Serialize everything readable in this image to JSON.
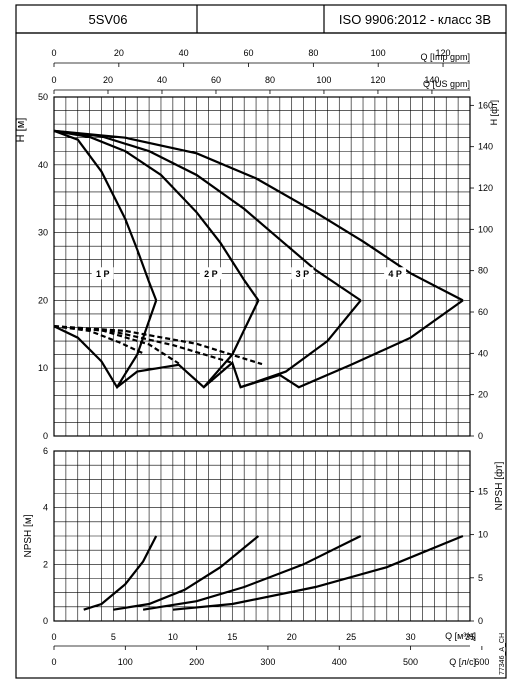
{
  "header": {
    "model": "5SV06",
    "blank": "",
    "standard": "ISO 9906:2012 - класс 3B"
  },
  "footer_code": "77346_A_CH",
  "chart_data": [
    {
      "type": "line",
      "title": "",
      "xlabel": "Q [м³/ч]",
      "ylabel": "H [м]",
      "y2label": "H [фт]",
      "xlim": [
        0,
        35
      ],
      "ylim": [
        0,
        50
      ],
      "x_ticks": [
        0,
        5,
        10,
        15,
        20,
        25,
        30
      ],
      "y_ticks": [
        0,
        10,
        20,
        30,
        40,
        50
      ],
      "y2_ticks": [
        0,
        20,
        40,
        60,
        80,
        100,
        120,
        140,
        160
      ],
      "y2_factor": 3.2808,
      "top_axes": [
        {
          "label": "Q [Imp gpm]",
          "factor": 3.6662,
          "ticks": [
            0,
            20,
            40,
            60,
            80,
            100,
            120
          ]
        },
        {
          "label": "Q [US gpm]",
          "factor": 4.4029,
          "ticks": [
            0,
            20,
            40,
            60,
            80,
            100,
            120,
            140
          ]
        }
      ],
      "grid": true,
      "series": [
        {
          "name": "1 P",
          "style": "solid",
          "label_at": [
            4.1,
            24
          ],
          "x": [
            0,
            2,
            4,
            6,
            7,
            8,
            8.6
          ],
          "y": [
            45,
            43.7,
            39,
            32,
            27.5,
            22.7,
            20
          ]
        },
        {
          "name": "2 P",
          "style": "solid",
          "label_at": [
            13.2,
            24
          ],
          "x": [
            0,
            3,
            6,
            9,
            12,
            14,
            16,
            17.2
          ],
          "y": [
            45,
            44.1,
            42,
            38.5,
            33,
            28.5,
            23,
            20
          ]
        },
        {
          "name": "3 P",
          "style": "solid",
          "label_at": [
            20.9,
            24
          ],
          "x": [
            0,
            4,
            8,
            12,
            16,
            19,
            22,
            25.8
          ],
          "y": [
            45,
            44.2,
            42,
            38.5,
            33.5,
            29,
            24.5,
            20
          ]
        },
        {
          "name": "4 P",
          "style": "solid",
          "label_at": [
            28.7,
            24
          ],
          "x": [
            0,
            6,
            12,
            17,
            22,
            26,
            30,
            34.4
          ],
          "y": [
            45,
            44,
            41.7,
            38,
            33,
            28.7,
            24,
            20
          ]
        },
        {
          "name": "",
          "style": "solid",
          "x": [
            0,
            2,
            4,
            5.3,
            7,
            8.6
          ],
          "y": [
            16.2,
            14.5,
            11,
            7.2,
            12,
            20
          ]
        },
        {
          "name": "",
          "style": "solid",
          "x": [
            5.3,
            7,
            10.5,
            12.6,
            15,
            17.2
          ],
          "y": [
            7.2,
            9.5,
            10.5,
            7.2,
            12,
            20
          ]
        },
        {
          "name": "",
          "style": "solid",
          "x": [
            12.6,
            15,
            15.7,
            19.5,
            23,
            25.8
          ],
          "y": [
            7.2,
            10.8,
            7.2,
            9.5,
            14,
            20
          ]
        },
        {
          "name": "",
          "style": "solid",
          "x": [
            15.7,
            19,
            20.6,
            25,
            30,
            34.4
          ],
          "y": [
            7.2,
            9,
            7.2,
            10.5,
            14.5,
            20
          ]
        },
        {
          "name": "",
          "style": "dashed",
          "x": [
            0,
            3,
            5.5,
            7.5
          ],
          "y": [
            16.2,
            15.5,
            13.8,
            12.2
          ]
        },
        {
          "name": "",
          "style": "dashed",
          "x": [
            0,
            4,
            8,
            10.5
          ],
          "y": [
            16.2,
            15.6,
            13.5,
            10.7
          ]
        },
        {
          "name": "",
          "style": "dashed",
          "x": [
            0,
            5,
            10,
            15
          ],
          "y": [
            16.2,
            15.4,
            13.4,
            10.8
          ]
        },
        {
          "name": "",
          "style": "dashed",
          "x": [
            0,
            6,
            12,
            17.5
          ],
          "y": [
            16.2,
            15.5,
            13.6,
            10.6
          ]
        }
      ]
    },
    {
      "type": "line",
      "title": "",
      "xlabel": "Q [м³/ч]",
      "x2label": "Q [л/с]",
      "ylabel": "NPSH [м]",
      "y2label": "NPSH [фт]",
      "xlim": [
        0,
        35
      ],
      "ylim": [
        0,
        6
      ],
      "x_ticks": [
        0,
        5,
        10,
        15,
        20,
        25,
        30,
        35
      ],
      "y_ticks": [
        0,
        2,
        4,
        6
      ],
      "y2_ticks": [
        0,
        5,
        10,
        15
      ],
      "y2_factor": 3.2808,
      "x2_factor": 16.667,
      "x2_ticks": [
        0,
        100,
        200,
        300,
        400,
        500,
        600
      ],
      "grid": true,
      "series": [
        {
          "name": "",
          "x": [
            2.5,
            4,
            6,
            7.5,
            8.6
          ],
          "y": [
            0.4,
            0.6,
            1.3,
            2.1,
            3.0
          ]
        },
        {
          "name": "",
          "x": [
            5,
            8,
            11,
            14,
            17.2
          ],
          "y": [
            0.4,
            0.6,
            1.1,
            1.9,
            3.0
          ]
        },
        {
          "name": "",
          "x": [
            7.5,
            12,
            16,
            21,
            25.8
          ],
          "y": [
            0.4,
            0.7,
            1.2,
            2.0,
            3.0
          ]
        },
        {
          "name": "",
          "x": [
            10,
            15,
            22,
            28,
            34.4
          ],
          "y": [
            0.4,
            0.6,
            1.2,
            1.9,
            3.0
          ]
        }
      ]
    }
  ]
}
